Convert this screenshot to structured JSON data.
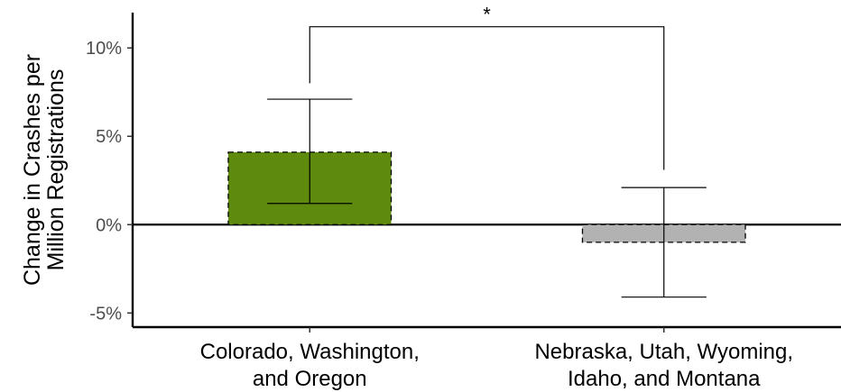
{
  "chart_data": {
    "type": "bar",
    "categories": [
      [
        "Colorado, Washington,",
        "and Oregon"
      ],
      [
        "Nebraska, Utah, Wyoming,",
        "Idaho, and Montana"
      ]
    ],
    "values": [
      4.1,
      -1.0
    ],
    "error_low": [
      1.2,
      -4.1
    ],
    "error_high": [
      7.1,
      2.1
    ],
    "bar_colors": [
      "#5e8a0e",
      "#b2b2b2"
    ],
    "ylabel": [
      "Change in Crashes per",
      "Million Registrations"
    ],
    "ylim": [
      -5.8,
      12
    ],
    "yticks": [
      -5,
      0,
      5,
      10
    ],
    "ytick_labels": [
      "-5%",
      "0%",
      "5%",
      "10%"
    ],
    "significance": {
      "between": [
        0,
        1
      ],
      "label": "*",
      "y": 11.2,
      "left_end": 8.0,
      "right_end": 3.1
    },
    "grid": false,
    "legend": "none"
  }
}
